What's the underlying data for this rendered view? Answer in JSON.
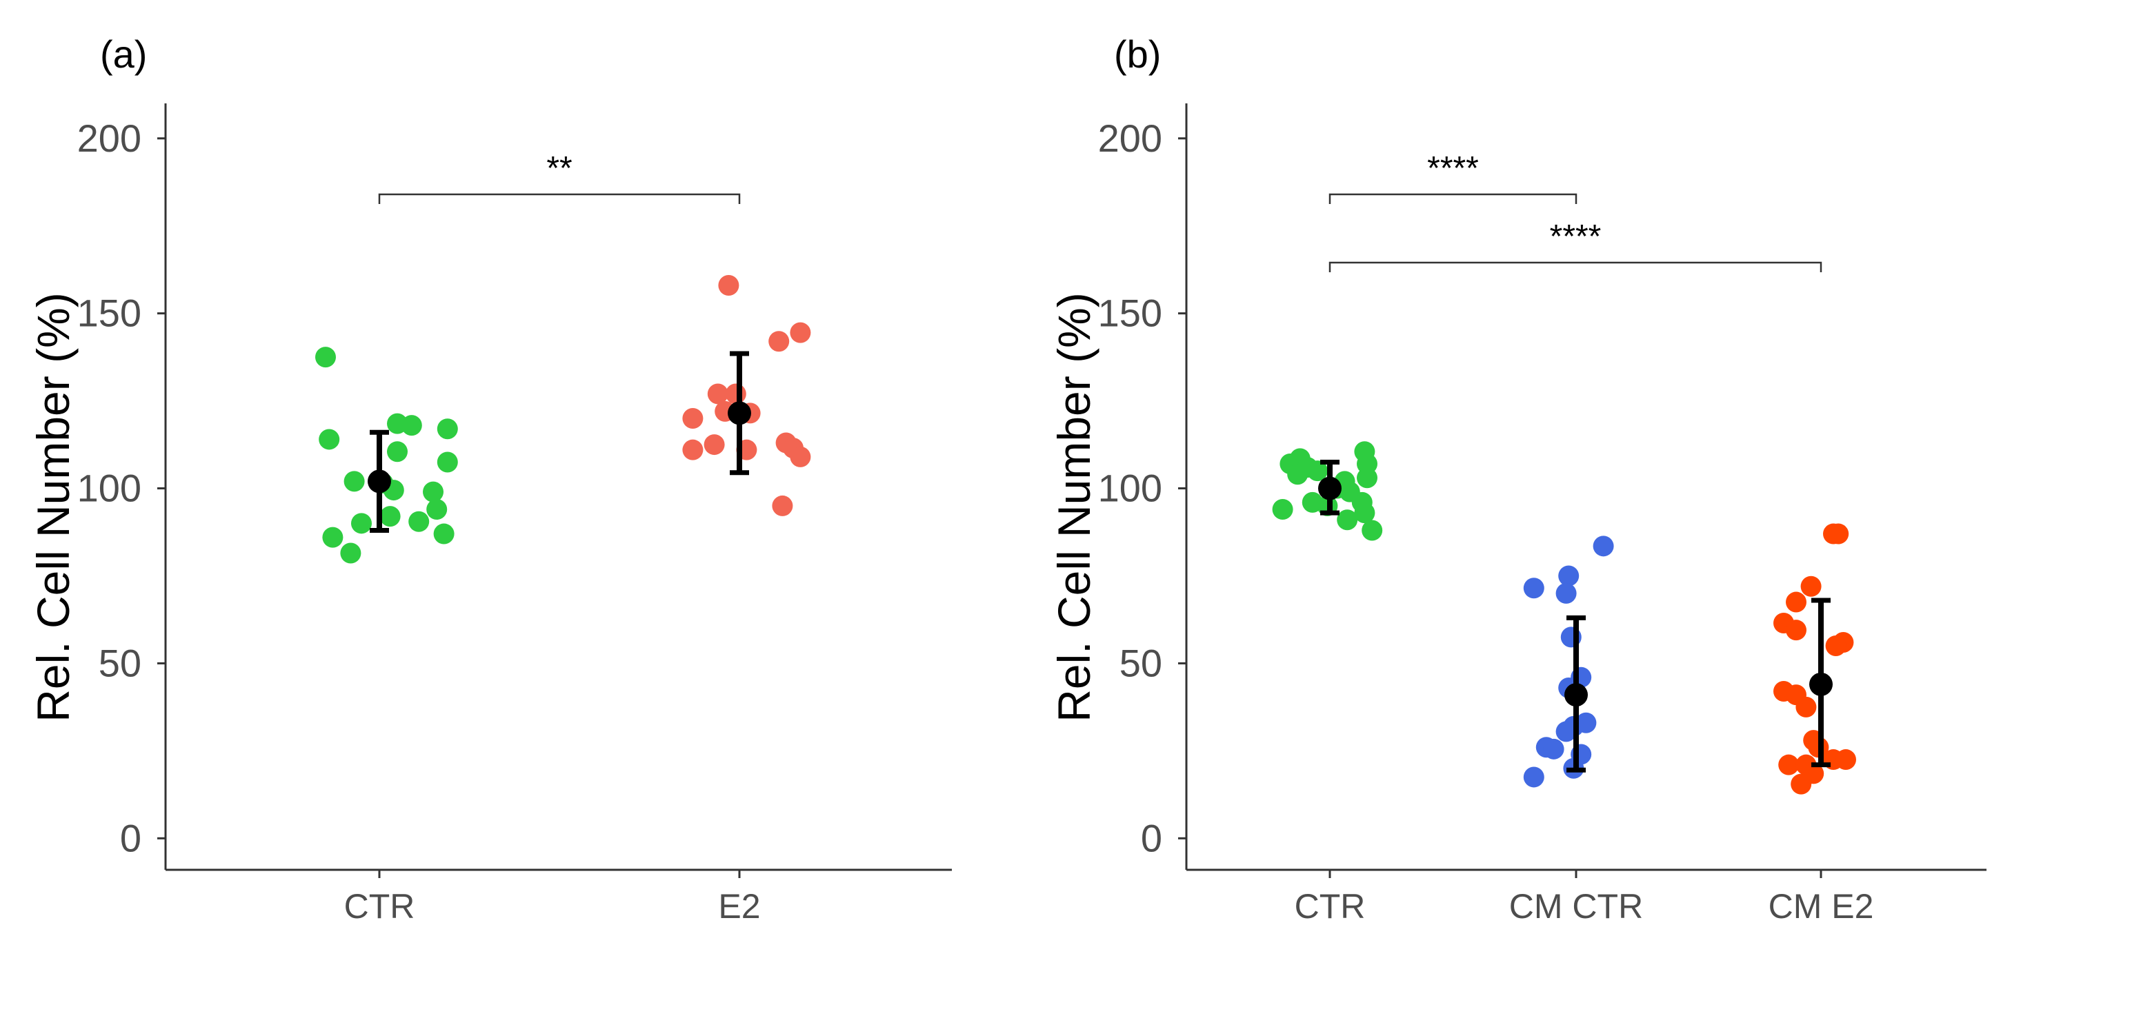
{
  "figure": {
    "panels": [
      "(a)",
      "(b)"
    ]
  },
  "chart_data": [
    {
      "type": "scatter",
      "panel_label": "(a)",
      "title": "",
      "xlabel": "",
      "ylabel": "Rel. Cell Number (%)",
      "ylim": [
        -9,
        210
      ],
      "yticks": [
        "0",
        "50",
        "100",
        "150",
        "200"
      ],
      "categories": [
        "CTR",
        "E2"
      ],
      "grid": false,
      "series": [
        {
          "name": "CTR",
          "color": "#2ecc40",
          "points": [
            {
              "dx": -0.15,
              "y": 137.5
            },
            {
              "dx": -0.14,
              "y": 114
            },
            {
              "dx": 0.05,
              "y": 118.5
            },
            {
              "dx": 0.09,
              "y": 118
            },
            {
              "dx": 0.19,
              "y": 117
            },
            {
              "dx": 0.05,
              "y": 110.5
            },
            {
              "dx": 0.19,
              "y": 107.5
            },
            {
              "dx": -0.07,
              "y": 102
            },
            {
              "dx": 0.01,
              "y": 101.5
            },
            {
              "dx": 0.04,
              "y": 99.5
            },
            {
              "dx": 0.15,
              "y": 99
            },
            {
              "dx": 0.16,
              "y": 94
            },
            {
              "dx": 0.03,
              "y": 92
            },
            {
              "dx": -0.05,
              "y": 90
            },
            {
              "dx": 0.11,
              "y": 90.5
            },
            {
              "dx": 0.18,
              "y": 87
            },
            {
              "dx": -0.13,
              "y": 86
            },
            {
              "dx": -0.08,
              "y": 81.5
            }
          ],
          "mean": 102,
          "error": [
            88,
            116
          ]
        },
        {
          "name": "E2",
          "color": "#f26552",
          "points": [
            {
              "dx": -0.13,
              "y": 120
            },
            {
              "dx": -0.13,
              "y": 111
            },
            {
              "dx": -0.06,
              "y": 127
            },
            {
              "dx": -0.07,
              "y": 112.5
            },
            {
              "dx": -0.01,
              "y": 127
            },
            {
              "dx": 0.03,
              "y": 121.5
            },
            {
              "dx": 0.02,
              "y": 111
            },
            {
              "dx": -0.04,
              "y": 122
            },
            {
              "dx": 0.11,
              "y": 142
            },
            {
              "dx": 0.17,
              "y": 144.5
            },
            {
              "dx": -0.03,
              "y": 158
            },
            {
              "dx": 0.13,
              "y": 113
            },
            {
              "dx": 0.15,
              "y": 111.5
            },
            {
              "dx": 0.17,
              "y": 109
            },
            {
              "dx": 0.12,
              "y": 95
            }
          ],
          "mean": 121.5,
          "error": [
            104.5,
            138.5
          ]
        }
      ],
      "significance": [
        {
          "from": 0,
          "to": 1,
          "y": 184,
          "label": "**"
        }
      ]
    },
    {
      "type": "scatter",
      "panel_label": "(b)",
      "title": "",
      "xlabel": "",
      "ylabel": "Rel. Cell Number (%)",
      "ylim": [
        -9,
        210
      ],
      "yticks": [
        "0",
        "50",
        "100",
        "150",
        "200"
      ],
      "categories": [
        "CTR",
        "CM CTR",
        "CM E2"
      ],
      "grid": false,
      "series": [
        {
          "name": "CTR",
          "color": "#2ecc40",
          "points": [
            {
              "dx": -0.16,
              "y": 107
            },
            {
              "dx": -0.12,
              "y": 108.5
            },
            {
              "dx": -0.09,
              "y": 106
            },
            {
              "dx": -0.05,
              "y": 105
            },
            {
              "dx": -0.13,
              "y": 104
            },
            {
              "dx": -0.19,
              "y": 94
            },
            {
              "dx": -0.07,
              "y": 96
            },
            {
              "dx": -0.01,
              "y": 95
            },
            {
              "dx": 0.03,
              "y": 100
            },
            {
              "dx": 0.06,
              "y": 102
            },
            {
              "dx": 0.08,
              "y": 99
            },
            {
              "dx": 0.14,
              "y": 110.5
            },
            {
              "dx": 0.15,
              "y": 107
            },
            {
              "dx": 0.15,
              "y": 103
            },
            {
              "dx": 0.13,
              "y": 96
            },
            {
              "dx": 0.14,
              "y": 93
            },
            {
              "dx": 0.07,
              "y": 91
            },
            {
              "dx": 0.17,
              "y": 88
            }
          ],
          "mean": 100,
          "error": [
            93,
            107.5
          ]
        },
        {
          "name": "CM CTR",
          "color": "#4169e1",
          "points": [
            {
              "dx": -0.17,
              "y": 71.5
            },
            {
              "dx": -0.03,
              "y": 75
            },
            {
              "dx": -0.04,
              "y": 70
            },
            {
              "dx": 0.11,
              "y": 83.5
            },
            {
              "dx": -0.02,
              "y": 57.5
            },
            {
              "dx": 0.02,
              "y": 46
            },
            {
              "dx": -0.03,
              "y": 43
            },
            {
              "dx": -0.01,
              "y": 32
            },
            {
              "dx": 0.04,
              "y": 33
            },
            {
              "dx": -0.04,
              "y": 30.5
            },
            {
              "dx": -0.12,
              "y": 26
            },
            {
              "dx": -0.09,
              "y": 25.5
            },
            {
              "dx": 0.02,
              "y": 24
            },
            {
              "dx": -0.01,
              "y": 20
            },
            {
              "dx": -0.17,
              "y": 17.5
            }
          ],
          "mean": 41,
          "error": [
            19.5,
            63
          ]
        },
        {
          "name": "CM E2",
          "color": "#ff4500",
          "points": [
            {
              "dx": -0.1,
              "y": 67.5
            },
            {
              "dx": -0.04,
              "y": 72
            },
            {
              "dx": 0.05,
              "y": 87
            },
            {
              "dx": 0.07,
              "y": 87
            },
            {
              "dx": -0.15,
              "y": 61.5
            },
            {
              "dx": -0.1,
              "y": 59.5
            },
            {
              "dx": 0.09,
              "y": 56
            },
            {
              "dx": 0.06,
              "y": 55
            },
            {
              "dx": -0.15,
              "y": 42
            },
            {
              "dx": -0.1,
              "y": 41
            },
            {
              "dx": -0.06,
              "y": 37.5
            },
            {
              "dx": -0.03,
              "y": 28
            },
            {
              "dx": -0.01,
              "y": 26
            },
            {
              "dx": -0.13,
              "y": 21
            },
            {
              "dx": -0.06,
              "y": 21
            },
            {
              "dx": 0.05,
              "y": 22.5
            },
            {
              "dx": 0.1,
              "y": 22.5
            },
            {
              "dx": -0.03,
              "y": 18.5
            },
            {
              "dx": -0.08,
              "y": 15.5
            }
          ],
          "mean": 44,
          "error": [
            21,
            68
          ]
        }
      ],
      "significance": [
        {
          "from": 0,
          "to": 1,
          "y": 184,
          "label": "****"
        },
        {
          "from": 0,
          "to": 2,
          "y": 164.5,
          "label": "****"
        }
      ]
    }
  ]
}
